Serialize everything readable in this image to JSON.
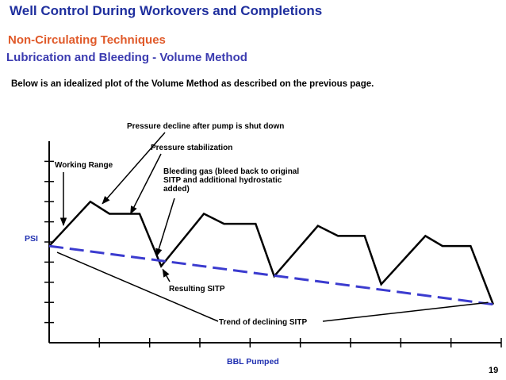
{
  "header": {
    "title": "Well Control During Workovers and Completions",
    "subtitle1": "Non-Circulating Techniques",
    "subtitle2": "Lubrication and Bleeding - Volume Method",
    "intro": "Below is an idealized plot of the Volume Method as described on the previous page."
  },
  "colors": {
    "title": "#1f2f9e",
    "subtitle1": "#e05a2a",
    "subtitle2": "#3b3bb0",
    "trend_line": "#3b3bcf",
    "axis_label": "#1f2fb0"
  },
  "chart_data": {
    "type": "line",
    "title": "",
    "xlabel": "BBL Pumped",
    "ylabel": "PSI",
    "xlim": [
      0,
      9
    ],
    "ylim": [
      0,
      10
    ],
    "x_ticks": [
      1,
      2,
      3,
      4,
      5,
      6,
      7,
      8,
      9
    ],
    "y_ticks": [
      1,
      2,
      3,
      4,
      5,
      6,
      7,
      8,
      9
    ],
    "grid": false,
    "series": [
      {
        "name": "",
        "style": "solid",
        "x": [
          0,
          0.82,
          1.2,
          1.8,
          2.23,
          3.08,
          3.48,
          4.11,
          4.48,
          5.35,
          5.75,
          6.28,
          6.61,
          7.49,
          7.83,
          8.39,
          8.84
        ],
        "y": [
          4.8,
          7.0,
          6.4,
          6.4,
          3.8,
          6.4,
          5.9,
          5.9,
          3.3,
          5.8,
          5.3,
          5.3,
          2.9,
          5.3,
          4.8,
          4.8,
          1.9
        ]
      },
      {
        "name": "",
        "style": "dashed",
        "x": [
          0,
          8.84
        ],
        "y": [
          4.8,
          1.9
        ]
      }
    ],
    "annotations": [
      {
        "label": "Pressure decline after pump is shut down",
        "target_x": 1.06,
        "target_y": 6.9
      },
      {
        "label": "Pressure stabilization",
        "target_x": 1.62,
        "target_y": 6.4
      },
      {
        "label": "Working Range",
        "target_x": 0.33,
        "target_y": 5.8
      },
      {
        "label": "Bleeding gas (bleed back to original SITP and additional hydrostatic added)",
        "target_x": 2.14,
        "target_y": 4.3
      },
      {
        "label": "Resulting SITP",
        "target_x": 2.23,
        "target_y": 3.8
      },
      {
        "label": "Trend of declining SITP",
        "target_x": 8.74,
        "target_y": 2.0
      }
    ]
  },
  "page_number": "19"
}
